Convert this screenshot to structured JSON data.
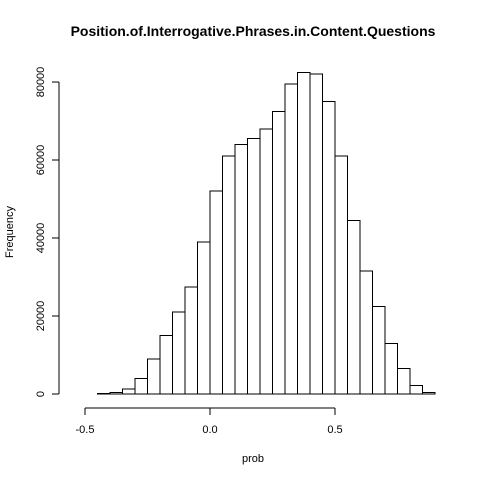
{
  "chart_data": {
    "type": "bar",
    "title": "Position.of.Interrogative.Phrases.in.Content.Questions",
    "xlabel": "prob",
    "ylabel": "Frequency",
    "bin_width": 0.05,
    "xlim": [
      -0.5,
      0.9
    ],
    "ylim": [
      0,
      85000
    ],
    "x_ticks": [
      -0.5,
      0.0,
      0.5
    ],
    "x_tick_labels": [
      "-0.5",
      "0.0",
      "0.5"
    ],
    "y_ticks": [
      0,
      20000,
      40000,
      60000,
      80000
    ],
    "y_tick_labels": [
      "0",
      "20000",
      "40000",
      "60000",
      "80000"
    ],
    "grid": false,
    "bins": [
      {
        "start": -0.45,
        "end": -0.4,
        "count": 100
      },
      {
        "start": -0.4,
        "end": -0.35,
        "count": 400
      },
      {
        "start": -0.35,
        "end": -0.3,
        "count": 1300
      },
      {
        "start": -0.3,
        "end": -0.25,
        "count": 4000
      },
      {
        "start": -0.25,
        "end": -0.2,
        "count": 9000
      },
      {
        "start": -0.2,
        "end": -0.15,
        "count": 15000
      },
      {
        "start": -0.15,
        "end": -0.1,
        "count": 21000
      },
      {
        "start": -0.1,
        "end": -0.05,
        "count": 27500
      },
      {
        "start": -0.05,
        "end": 0.0,
        "count": 39000
      },
      {
        "start": 0.0,
        "end": 0.05,
        "count": 52000
      },
      {
        "start": 0.05,
        "end": 0.1,
        "count": 61000
      },
      {
        "start": 0.1,
        "end": 0.15,
        "count": 64000
      },
      {
        "start": 0.15,
        "end": 0.2,
        "count": 65500
      },
      {
        "start": 0.2,
        "end": 0.25,
        "count": 68000
      },
      {
        "start": 0.25,
        "end": 0.3,
        "count": 72500
      },
      {
        "start": 0.3,
        "end": 0.35,
        "count": 79500
      },
      {
        "start": 0.35,
        "end": 0.4,
        "count": 82500
      },
      {
        "start": 0.4,
        "end": 0.45,
        "count": 82000
      },
      {
        "start": 0.45,
        "end": 0.5,
        "count": 75000
      },
      {
        "start": 0.5,
        "end": 0.55,
        "count": 61000
      },
      {
        "start": 0.55,
        "end": 0.6,
        "count": 44500
      },
      {
        "start": 0.6,
        "end": 0.65,
        "count": 31500
      },
      {
        "start": 0.65,
        "end": 0.7,
        "count": 22500
      },
      {
        "start": 0.7,
        "end": 0.75,
        "count": 13000
      },
      {
        "start": 0.75,
        "end": 0.8,
        "count": 6500
      },
      {
        "start": 0.8,
        "end": 0.85,
        "count": 2200
      },
      {
        "start": 0.85,
        "end": 0.9,
        "count": 400
      }
    ]
  }
}
